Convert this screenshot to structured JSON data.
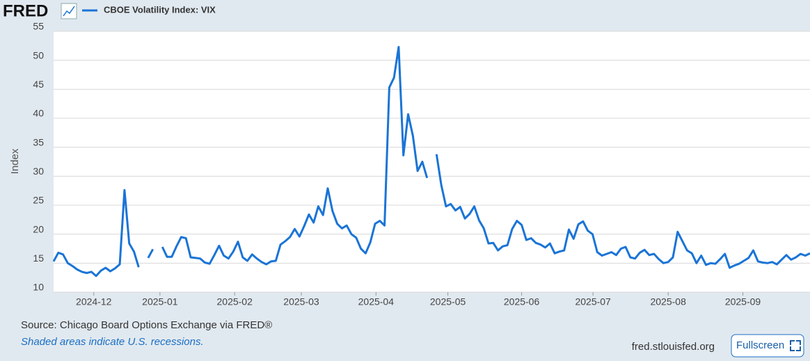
{
  "header": {
    "logo": "FRED"
  },
  "chart_data": {
    "type": "line",
    "y_label": "Index",
    "categories": [
      null,
      null,
      null,
      null,
      null,
      null,
      null,
      null,
      null,
      null,
      null,
      null,
      null,
      null,
      null,
      null,
      null,
      null,
      null,
      null,
      null,
      null,
      null,
      null,
      null,
      null,
      null,
      null,
      null,
      null,
      null,
      null,
      null,
      null,
      null,
      null,
      null,
      null,
      null,
      null,
      null,
      null,
      null,
      null,
      null,
      null,
      null,
      null,
      null,
      null,
      null,
      null,
      null,
      null,
      null,
      null,
      null,
      null,
      null,
      null,
      null,
      null,
      null,
      null,
      null,
      null,
      null,
      null,
      null,
      null,
      null,
      null,
      null,
      null,
      null,
      null,
      null,
      null,
      null,
      null,
      null,
      null,
      null,
      null,
      null,
      null,
      null,
      null,
      null,
      null,
      null,
      null,
      null,
      null,
      null,
      null,
      null,
      null,
      null,
      null,
      null,
      null,
      null,
      null,
      null,
      null,
      null,
      null,
      null,
      null,
      null,
      null,
      null,
      null,
      null,
      null,
      null,
      null,
      null,
      null,
      null,
      null,
      null,
      null,
      null,
      null,
      null,
      null,
      null,
      null,
      null,
      null,
      null,
      null,
      null,
      null,
      null,
      null,
      null,
      null,
      null,
      null,
      null,
      null,
      null,
      null,
      null,
      null,
      null,
      null,
      null,
      null,
      null,
      null,
      null,
      null,
      null,
      null,
      null,
      null,
      null
    ],
    "series": [
      {
        "name": "CBOE Volatility Index: VIX",
        "color": "#1a74d6",
        "values": [
          15.3,
          16.8,
          16.5,
          15.0,
          14.5,
          13.9,
          13.5,
          13.3,
          13.5,
          12.8,
          13.7,
          14.2,
          13.6,
          14.1,
          14.8,
          27.6,
          18.4,
          17.0,
          14.3,
          null,
          15.9,
          17.4,
          null,
          17.8,
          16.1,
          16.1,
          17.9,
          19.5,
          19.3,
          16.0,
          15.9,
          15.8,
          15.1,
          14.9,
          16.4,
          18.0,
          16.3,
          15.8,
          17.0,
          18.7,
          16.0,
          15.4,
          16.5,
          15.8,
          15.2,
          14.8,
          15.3,
          15.4,
          18.2,
          18.8,
          19.5,
          20.9,
          19.6,
          21.4,
          23.4,
          22.0,
          24.8,
          23.3,
          27.9,
          24.0,
          21.8,
          21.0,
          21.5,
          20.0,
          19.4,
          17.5,
          16.7,
          18.6,
          21.8,
          22.3,
          21.5,
          45.3,
          47.0,
          52.3,
          33.6,
          40.7,
          37.0,
          30.9,
          32.5,
          29.7,
          null,
          33.8,
          28.5,
          24.8,
          25.2,
          24.1,
          24.7,
          22.7,
          23.5,
          24.8,
          22.4,
          21.0,
          18.4,
          18.5,
          17.2,
          17.9,
          18.1,
          20.9,
          22.3,
          21.6,
          19.0,
          19.3,
          18.5,
          18.2,
          17.7,
          18.4,
          16.7,
          17.0,
          17.2,
          20.8,
          19.2,
          21.7,
          22.2,
          20.6,
          20.0,
          16.9,
          16.3,
          16.6,
          16.9,
          16.4,
          17.5,
          17.8,
          16.0,
          15.8,
          16.8,
          17.3,
          16.4,
          16.6,
          15.7,
          15.0,
          15.2,
          16.0,
          20.4,
          18.8,
          17.2,
          16.7,
          15.0,
          16.3,
          14.7,
          15.0,
          14.9,
          15.7,
          16.6,
          14.2,
          14.6,
          14.9,
          15.4,
          15.9,
          17.2,
          15.3,
          15.1,
          15.0,
          15.2,
          14.8,
          15.6,
          16.4,
          15.6,
          16.0,
          16.6,
          16.3,
          16.7
        ]
      }
    ],
    "xlim": [
      0,
      160
    ],
    "xticks": [
      {
        "value": 8.5,
        "label": "2024-12"
      },
      {
        "value": 22.5,
        "label": "2025-01"
      },
      {
        "value": 38.3,
        "label": "2025-02"
      },
      {
        "value": 52.4,
        "label": "2025-03"
      },
      {
        "value": 68.2,
        "label": "2025-04"
      },
      {
        "value": 83.4,
        "label": "2025-05"
      },
      {
        "value": 99,
        "label": "2025-06"
      },
      {
        "value": 114.1,
        "label": "2025-07"
      },
      {
        "value": 130,
        "label": "2025-08"
      },
      {
        "value": 145.8,
        "label": "2025-09"
      }
    ],
    "ylim": [
      10,
      55
    ],
    "yticks": [
      10,
      15,
      20,
      25,
      30,
      35,
      40,
      45,
      50,
      55
    ],
    "grid": true
  },
  "footer": {
    "source": "Source: Chicago Board Options Exchange via FRED®",
    "note": "Shaded areas indicate U.S. recessions.",
    "url": "fred.stlouisfed.org",
    "button": "Fullscreen"
  }
}
